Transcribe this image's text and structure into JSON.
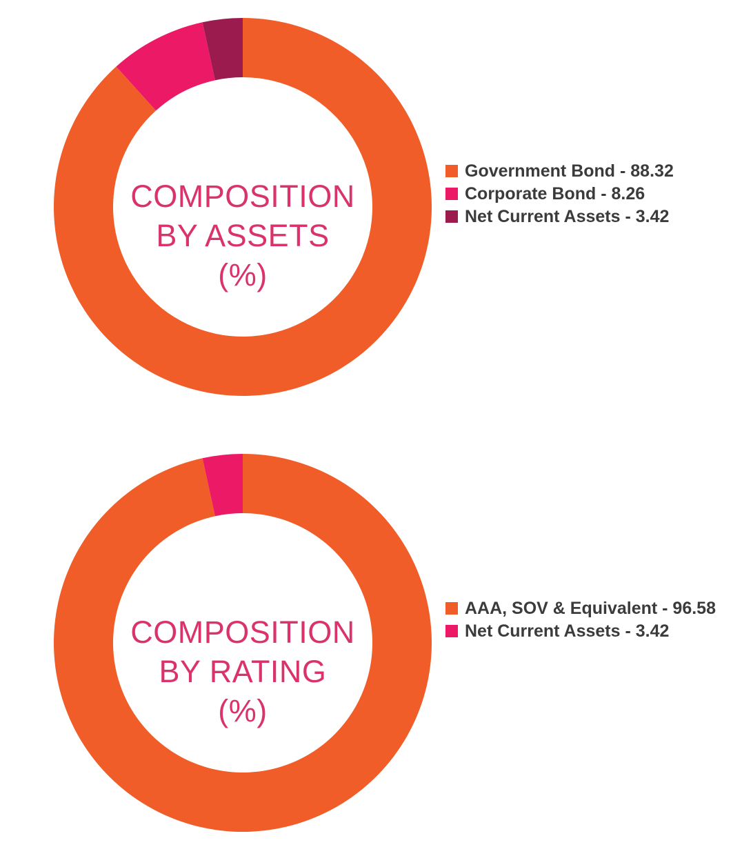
{
  "colors": {
    "orange": "#f05d28",
    "pink": "#ec1a66",
    "maroon": "#9c1b4f",
    "center_text": "#d9336a",
    "legend_text": "#3b3b3b"
  },
  "chart_data": [
    {
      "type": "donut",
      "center_title": [
        "COMPOSITION",
        "BY ASSETS",
        "(%)"
      ],
      "series": [
        {
          "label": "Government Bond - 88.32",
          "name": "Government Bond",
          "value": 88.32,
          "color": "#f05d28"
        },
        {
          "label": "Corporate Bond - 8.26",
          "name": "Corporate Bond",
          "value": 8.26,
          "color": "#ec1a66"
        },
        {
          "label": "Net Current Assets - 3.42",
          "name": "Net Current Assets",
          "value": 3.42,
          "color": "#9c1b4f"
        }
      ],
      "legend_position": "right"
    },
    {
      "type": "donut",
      "center_title": [
        "COMPOSITION",
        "BY RATING",
        "(%)"
      ],
      "series": [
        {
          "label": "AAA, SOV & Equivalent - 96.58",
          "name": "AAA, SOV & Equivalent",
          "value": 96.58,
          "color": "#f05d28"
        },
        {
          "label": "Net Current Assets - 3.42",
          "name": "Net Current Assets",
          "value": 3.42,
          "color": "#ec1a66"
        }
      ],
      "legend_position": "right"
    }
  ]
}
